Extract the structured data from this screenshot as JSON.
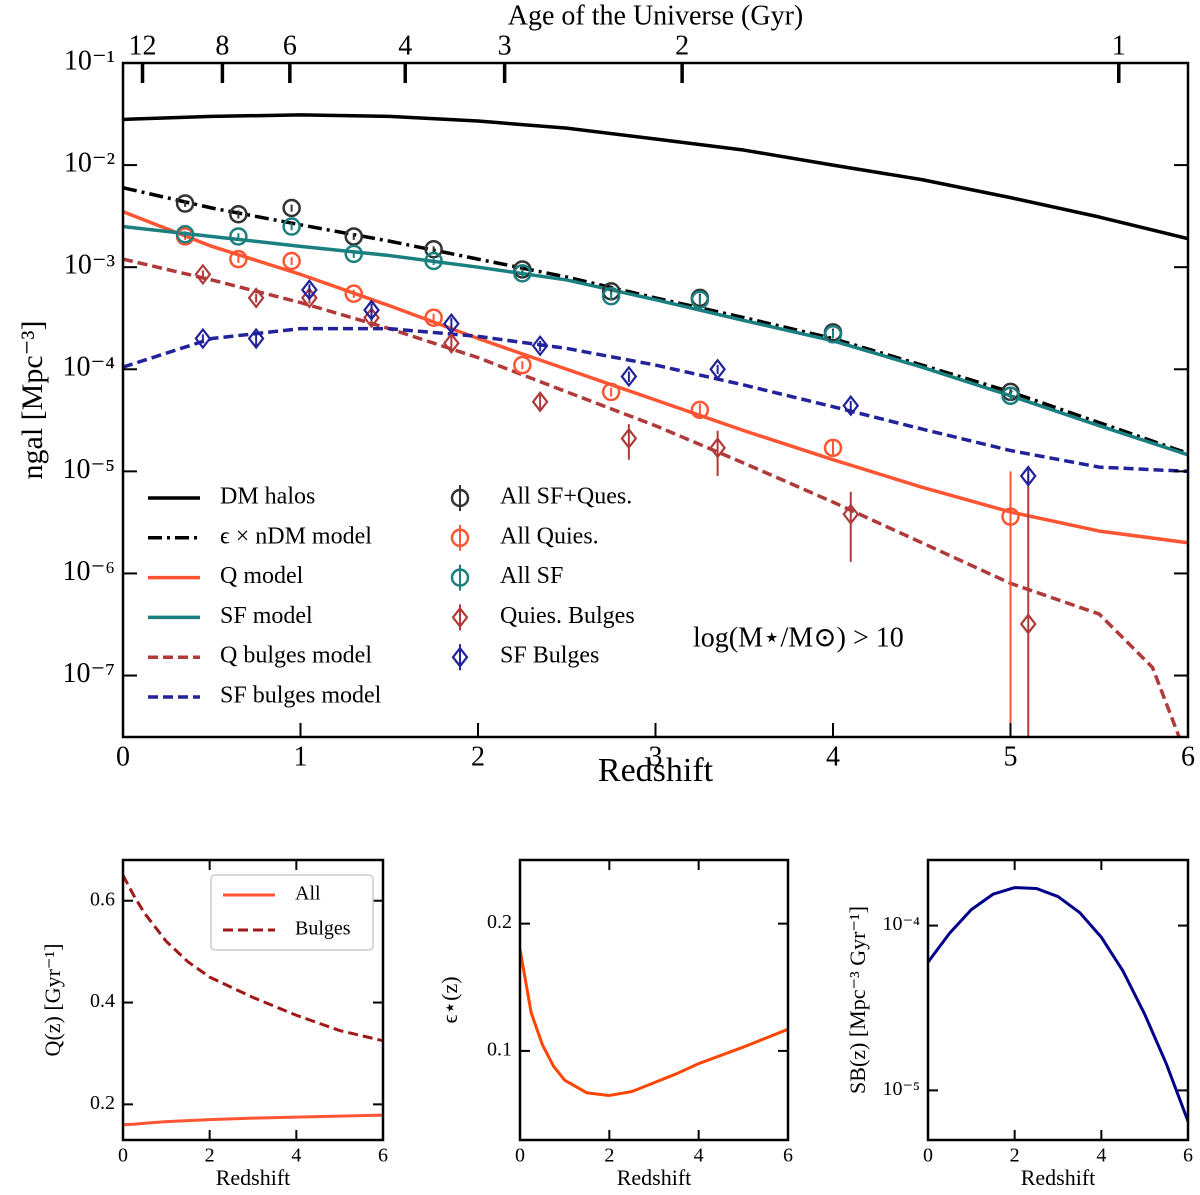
{
  "chart_data": [
    {
      "type": "line",
      "xlabel": "Redshift",
      "ylabel": "ngal [Mpc⁻³]",
      "x2label": "Age of the Universe (Gyr)",
      "annotation": "log(M⋆/M⊙) > 10",
      "legend": "lower left",
      "log_y": true,
      "xlim": [
        0,
        6
      ],
      "ylim": [
        2.5e-08,
        0.1
      ],
      "xticks": [
        0,
        1,
        2,
        3,
        4,
        5,
        6
      ],
      "yticks": [
        {
          "value": 1e-07,
          "label": "10⁻⁷"
        },
        {
          "value": 1e-06,
          "label": "10⁻⁶"
        },
        {
          "value": 1e-05,
          "label": "10⁻⁵"
        },
        {
          "value": 0.0001,
          "label": "10⁻⁴"
        },
        {
          "value": 0.001,
          "label": "10⁻³"
        },
        {
          "value": 0.01,
          "label": "10⁻²"
        },
        {
          "value": 0.1,
          "label": "10⁻¹"
        }
      ],
      "x2ticks": [
        {
          "value": 0.11,
          "label": "12"
        },
        {
          "value": 0.56,
          "label": "8"
        },
        {
          "value": 0.94,
          "label": "6"
        },
        {
          "value": 1.59,
          "label": "4"
        },
        {
          "value": 2.15,
          "label": "3"
        },
        {
          "value": 3.15,
          "label": "2"
        },
        {
          "value": 5.61,
          "label": "1"
        }
      ],
      "series": [
        {
          "name": "DM halos",
          "color": "#000000",
          "linestyle": "solid",
          "x": [
            0,
            0.5,
            1,
            1.5,
            2,
            2.5,
            3,
            3.5,
            4,
            4.5,
            5,
            5.5,
            6
          ],
          "values": [
            0.028,
            0.03,
            0.031,
            0.03,
            0.027,
            0.023,
            0.018,
            0.014,
            0.01,
            0.0072,
            0.0048,
            0.0031,
            0.0019
          ]
        },
        {
          "name": "ϵ × nDM model",
          "color": "#000000",
          "linestyle": "dashdot",
          "x": [
            0,
            0.5,
            1,
            1.5,
            2,
            2.5,
            3,
            3.5,
            4,
            4.5,
            5,
            5.5,
            6
          ],
          "values": [
            0.006,
            0.0038,
            0.0026,
            0.0018,
            0.0012,
            0.0008,
            0.0005,
            0.00032,
            0.0002,
            0.00011,
            6e-05,
            3e-05,
            1.5e-05
          ]
        },
        {
          "name": "Q model",
          "color": "#ff5533",
          "linestyle": "solid",
          "x": [
            0,
            0.5,
            1,
            1.5,
            2,
            2.5,
            3,
            3.5,
            4,
            4.5,
            5,
            5.5,
            6
          ],
          "values": [
            0.0035,
            0.0016,
            0.00085,
            0.00042,
            0.0002,
            0.0001,
            5e-05,
            2.5e-05,
            1.3e-05,
            7e-06,
            4e-06,
            2.6e-06,
            2e-06
          ]
        },
        {
          "name": "SF model",
          "color": "#1a7f7f",
          "linestyle": "solid",
          "x": [
            0,
            0.5,
            1,
            1.5,
            2,
            2.5,
            3,
            3.5,
            4,
            4.5,
            5,
            5.5,
            6
          ],
          "values": [
            0.0025,
            0.002,
            0.0016,
            0.0013,
            0.001,
            0.00075,
            0.00048,
            0.0003,
            0.00019,
            0.000105,
            5.5e-05,
            2.8e-05,
            1.45e-05
          ]
        },
        {
          "name": "Q bulges model",
          "color": "#b03a3a",
          "linestyle": "dashed",
          "x": [
            0,
            0.5,
            1,
            1.5,
            2,
            2.5,
            3,
            3.5,
            4,
            4.5,
            5,
            5.5,
            5.8,
            5.95
          ],
          "values": [
            0.0012,
            0.00075,
            0.00045,
            0.00025,
            0.00013,
            6e-05,
            2.8e-05,
            1.2e-05,
            5e-06,
            2e-06,
            8e-07,
            4e-07,
            1.2e-07,
            2.5e-08
          ]
        },
        {
          "name": "SF bulges model",
          "color": "#22229a",
          "linestyle": "dashed",
          "x": [
            0,
            0.5,
            1,
            1.5,
            2,
            2.5,
            3,
            3.5,
            4,
            4.5,
            5,
            5.5,
            6
          ],
          "values": [
            0.000105,
            0.0002,
            0.00025,
            0.00025,
            0.00021,
            0.00016,
            0.00011,
            7e-05,
            4.3e-05,
            2.6e-05,
            1.6e-05,
            1.1e-05,
            1e-05
          ]
        },
        {
          "name": "All SF+Ques.",
          "color": "#333333",
          "marker": "circle",
          "x": [
            0.35,
            0.65,
            0.95,
            1.3,
            1.75,
            2.25,
            2.75,
            3.25,
            4,
            5
          ],
          "values": [
            0.0042,
            0.0033,
            0.0038,
            0.002,
            0.0015,
            0.00095,
            0.00058,
            0.0005,
            0.00023,
            6e-05
          ],
          "yerr": [
            0.0003,
            0.0003,
            0.0003,
            0.00015,
            0.0001,
            7e-05,
            5e-05,
            5e-05,
            2e-05,
            6e-06
          ]
        },
        {
          "name": "All Quies.",
          "color": "#ff5533",
          "marker": "circle",
          "x": [
            0.35,
            0.65,
            0.95,
            1.3,
            1.75,
            2.25,
            2.75,
            3.25,
            4,
            5
          ],
          "values": [
            0.002,
            0.0012,
            0.00115,
            0.00055,
            0.00032,
            0.00011,
            6e-05,
            4e-05,
            1.7e-05,
            3.6e-06
          ],
          "yerr": [
            0.00015,
            0.0001,
            0.0001,
            5e-05,
            3e-05,
            1e-05,
            6e-06,
            6e-06,
            3e-06,
            6.4e-06
          ]
        },
        {
          "name": "All SF",
          "color": "#1a7f7f",
          "marker": "circle",
          "x": [
            0.35,
            0.65,
            0.95,
            1.3,
            1.75,
            2.25,
            2.75,
            3.25,
            4,
            5
          ],
          "values": [
            0.0021,
            0.002,
            0.0025,
            0.00135,
            0.00115,
            0.00087,
            0.00052,
            0.00048,
            0.00022,
            5.5e-05
          ],
          "yerr": [
            0.00015,
            0.00015,
            0.0002,
            0.00012,
            0.0001,
            7e-05,
            5e-05,
            5e-05,
            2e-05,
            6e-06
          ]
        },
        {
          "name": "Quies. Bulges",
          "color": "#b03a3a",
          "marker": "diamond",
          "x": [
            0.45,
            0.75,
            1.05,
            1.4,
            1.85,
            2.35,
            2.85,
            3.35,
            4.1,
            5.1
          ],
          "values": [
            0.00085,
            0.0005,
            0.0005,
            0.00032,
            0.00018,
            4.8e-05,
            2.1e-05,
            1.7e-05,
            3.8e-06,
            3.2e-07
          ],
          "yerr": [
            8e-05,
            5e-05,
            6e-05,
            4e-05,
            3e-05,
            9e-06,
            8e-06,
            8e-06,
            2.5e-06,
            9e-06
          ]
        },
        {
          "name": "SF Bulges",
          "color": "#22229a",
          "marker": "diamond",
          "x": [
            0.45,
            0.75,
            1.05,
            1.4,
            1.85,
            2.35,
            2.85,
            3.35,
            4.1,
            5.1
          ],
          "values": [
            0.0002,
            0.0002,
            0.0006,
            0.00038,
            0.00028,
            0.00017,
            8.5e-05,
            0.0001,
            4.4e-05,
            9e-06
          ],
          "yerr": [
            2e-05,
            3e-05,
            8e-05,
            6e-05,
            4e-05,
            2e-05,
            1e-05,
            1e-05,
            5e-06,
            1.5e-06
          ]
        }
      ]
    },
    {
      "type": "line",
      "xlabel": "Redshift",
      "ylabel": "Q(z) [Gyr⁻¹]",
      "legend": "upper right",
      "legend_frame": true,
      "xlim": [
        0,
        6
      ],
      "ylim": [
        0.13,
        0.68
      ],
      "xticks": [
        0,
        2,
        4,
        6
      ],
      "yticks": [
        0.2,
        0.4,
        0.6
      ],
      "series": [
        {
          "name": "All",
          "color": "#ff5533",
          "linestyle": "solid",
          "x": [
            0,
            0.25,
            0.5,
            1,
            1.5,
            2,
            3,
            4,
            5,
            6
          ],
          "values": [
            0.16,
            0.161,
            0.163,
            0.166,
            0.168,
            0.17,
            0.173,
            0.175,
            0.177,
            0.179
          ]
        },
        {
          "name": "Bulges",
          "color": "#a01818",
          "linestyle": "dashed",
          "x": [
            0,
            0.25,
            0.5,
            1,
            1.5,
            2,
            3,
            4,
            5,
            6
          ],
          "values": [
            0.65,
            0.61,
            0.575,
            0.52,
            0.48,
            0.45,
            0.41,
            0.375,
            0.345,
            0.325
          ]
        }
      ]
    },
    {
      "type": "line",
      "xlabel": "Redshift",
      "ylabel": "ϵ⋆(z)",
      "xlim": [
        0,
        6
      ],
      "ylim": [
        0.03,
        0.25
      ],
      "xticks": [
        0,
        2,
        4,
        6
      ],
      "yticks": [
        0.1,
        0.2
      ],
      "series": [
        {
          "color": "#ff4500",
          "linestyle": "solid",
          "x": [
            0,
            0.25,
            0.5,
            0.75,
            1,
            1.5,
            2,
            2.5,
            3,
            3.5,
            4,
            5,
            6
          ],
          "values": [
            0.18,
            0.13,
            0.105,
            0.088,
            0.077,
            0.067,
            0.065,
            0.068,
            0.075,
            0.082,
            0.09,
            0.103,
            0.117
          ]
        }
      ]
    },
    {
      "type": "line",
      "xlabel": "Redshift",
      "ylabel": "SB(z) [Mpc⁻³ Gyr⁻¹]",
      "log_y": true,
      "xlim": [
        0,
        6
      ],
      "ylim": [
        5e-06,
        0.00025
      ],
      "xticks": [
        0,
        2,
        4,
        6
      ],
      "yticks": [
        {
          "value": 1e-05,
          "label": "10⁻⁵"
        },
        {
          "value": 0.0001,
          "label": "10⁻⁴"
        }
      ],
      "series": [
        {
          "color": "#00008b",
          "linestyle": "solid",
          "x": [
            0,
            0.5,
            1,
            1.5,
            2,
            2.5,
            3,
            3.5,
            4,
            4.5,
            5,
            5.5,
            6
          ],
          "values": [
            6e-05,
            9e-05,
            0.000125,
            0.000155,
            0.00017,
            0.000168,
            0.00015,
            0.00012,
            8.5e-05,
            5.3e-05,
            2.9e-05,
            1.45e-05,
            6.5e-06
          ]
        }
      ]
    }
  ]
}
